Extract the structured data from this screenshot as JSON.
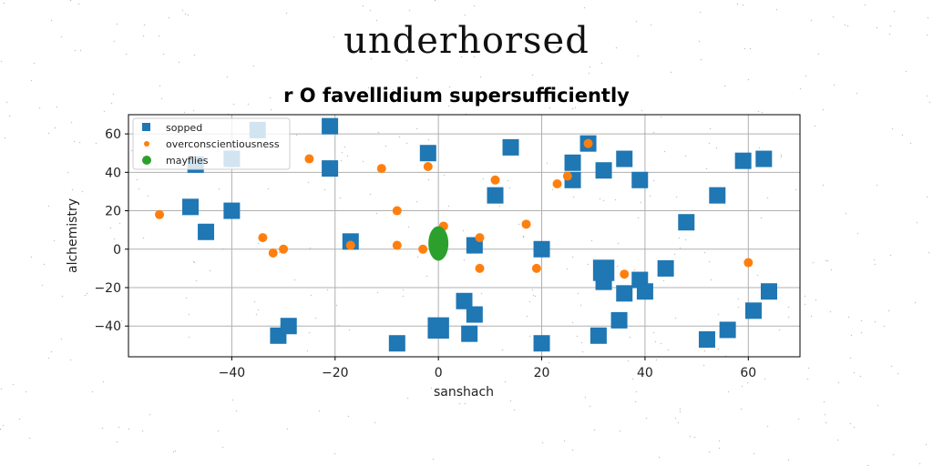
{
  "page": {
    "title": "underhorsed"
  },
  "chart_data": {
    "type": "scatter",
    "title": "r O favellidium supersufficiently",
    "xlabel": "sanshach",
    "ylabel": "alchemistry",
    "xlim": [
      -60,
      70
    ],
    "ylim": [
      -56,
      70
    ],
    "xticks": [
      -40,
      -20,
      0,
      20,
      40,
      60
    ],
    "yticks": [
      -40,
      -20,
      0,
      20,
      40,
      60
    ],
    "grid": true,
    "legend_position": "upper-left",
    "series": [
      {
        "name": "sopped",
        "marker": "square",
        "color": "#1f77b4",
        "x": [
          -48,
          -47,
          -45,
          -40,
          -40,
          -35,
          -31,
          -29,
          -21,
          -21,
          -17,
          -8,
          -2,
          0,
          5,
          6,
          7,
          7,
          11,
          14,
          20,
          20,
          26,
          26,
          29,
          31,
          32,
          32,
          32,
          35,
          36,
          36,
          39,
          39,
          40,
          44,
          48,
          52,
          54,
          56,
          59,
          61,
          63,
          64
        ],
        "y": [
          22,
          44,
          9,
          20,
          47,
          62,
          -45,
          -40,
          42,
          64,
          4,
          -49,
          50,
          -41,
          -27,
          -44,
          -34,
          2,
          28,
          53,
          -49,
          0,
          36,
          45,
          55,
          -45,
          41,
          -11,
          -17,
          -37,
          47,
          -23,
          -16,
          36,
          -22,
          -10,
          14,
          -47,
          28,
          -42,
          46,
          -32,
          47,
          -22
        ],
        "sizes": [
          1,
          1,
          1,
          1,
          1,
          1,
          1,
          1,
          1,
          1,
          1,
          1,
          1,
          1.3,
          1,
          1,
          1,
          1,
          1,
          1,
          1,
          1,
          1,
          1,
          1,
          1,
          1,
          1.3,
          1,
          1,
          1,
          1,
          1,
          1,
          1,
          1,
          1,
          1,
          1,
          1,
          1,
          1,
          1,
          1
        ]
      },
      {
        "name": "overconscientiousness",
        "marker": "circle",
        "color": "#ff7f0e",
        "x": [
          -54,
          -34,
          -32,
          -30,
          -25,
          -17,
          -11,
          -8,
          -8,
          -3,
          -2,
          1,
          8,
          8,
          11,
          17,
          19,
          23,
          25,
          29,
          36,
          60
        ],
        "y": [
          18,
          6,
          -2,
          0,
          47,
          2,
          42,
          20,
          2,
          0,
          43,
          12,
          6,
          -10,
          36,
          13,
          -10,
          34,
          38,
          55,
          -13,
          -7
        ]
      },
      {
        "name": "mayflies",
        "marker": "circle",
        "color": "#2ca02c",
        "x": [
          0
        ],
        "y": [
          3
        ]
      }
    ]
  }
}
